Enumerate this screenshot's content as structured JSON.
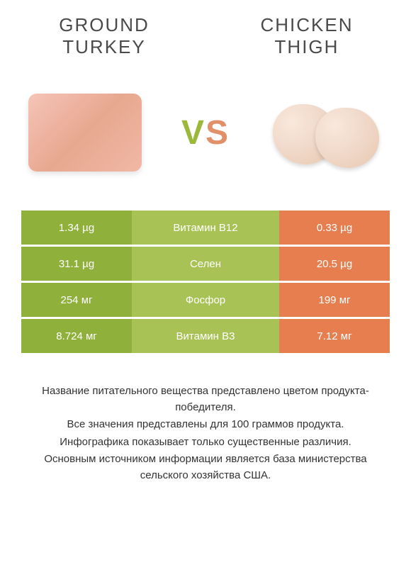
{
  "products": {
    "left": {
      "title_line1": "GROUND",
      "title_line2": "TURKEY"
    },
    "right": {
      "title_line1": "CHICKEN",
      "title_line2": "THIGH"
    }
  },
  "vs": {
    "v": "V",
    "s": "S"
  },
  "colors": {
    "green": "#8fb03a",
    "light_green": "#a8c255",
    "orange": "#e67e50",
    "light_orange": "#ea9068"
  },
  "comparison": {
    "rows": [
      {
        "left_value": "1.34 µg",
        "nutrient": "Витамин B12",
        "right_value": "0.33 µg",
        "left_bg": "#8fb03a",
        "middle_bg": "#a8c255",
        "right_bg": "#e67e50"
      },
      {
        "left_value": "31.1 µg",
        "nutrient": "Селен",
        "right_value": "20.5 µg",
        "left_bg": "#8fb03a",
        "middle_bg": "#a8c255",
        "right_bg": "#e67e50"
      },
      {
        "left_value": "254 мг",
        "nutrient": "Фосфор",
        "right_value": "199 мг",
        "left_bg": "#8fb03a",
        "middle_bg": "#a8c255",
        "right_bg": "#e67e50"
      },
      {
        "left_value": "8.724 мг",
        "nutrient": "Витамин B3",
        "right_value": "7.12 мг",
        "left_bg": "#8fb03a",
        "middle_bg": "#a8c255",
        "right_bg": "#e67e50"
      }
    ]
  },
  "footer": {
    "line1": "Название питательного вещества представлено цветом продукта-победителя.",
    "line2": "Все значения представлены для 100 граммов продукта.",
    "line3": "Инфографика показывает только существенные различия.",
    "line4": "Основным источником информации является база министерства сельского хозяйства США."
  }
}
